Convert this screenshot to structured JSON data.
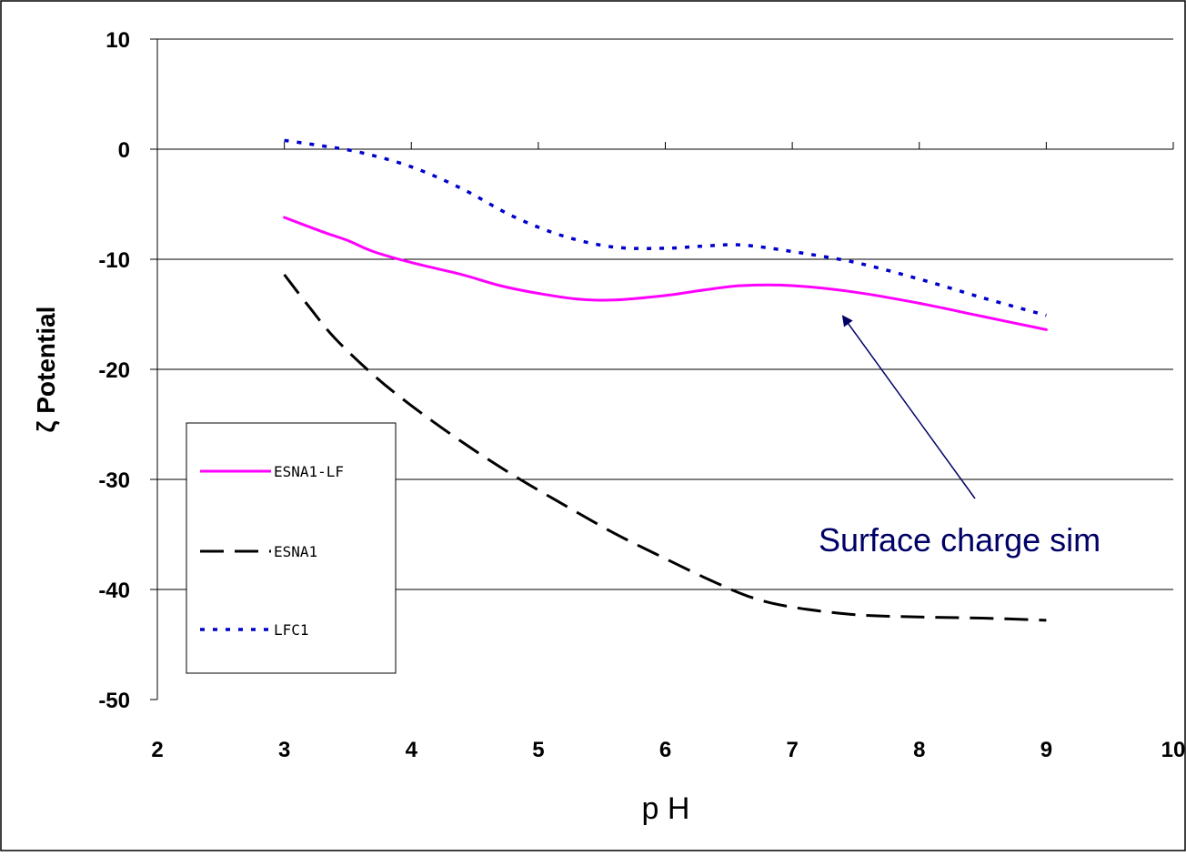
{
  "chart_data": {
    "type": "line",
    "xlabel": "p H",
    "ylabel": "ζ Potential",
    "xlim": [
      2,
      10
    ],
    "ylim": [
      -50,
      10
    ],
    "x_ticks": [
      "2",
      "3",
      "4",
      "5",
      "6",
      "7",
      "8",
      "9",
      "10"
    ],
    "y_ticks": [
      "10",
      "0",
      "-10",
      "-20",
      "-30",
      "-40",
      "-50"
    ],
    "grid": "horizontal",
    "legend_position": "left",
    "series": [
      {
        "name": "ESNA1-LF",
        "color": "#ff00ff",
        "style": "solid",
        "x": [
          3,
          3.3,
          3.5,
          3.7,
          4,
          4.4,
          4.7,
          5,
          5.3,
          5.6,
          6,
          6.3,
          6.6,
          7,
          7.5,
          8,
          8.5,
          9
        ],
        "y": [
          -6.2,
          -7.5,
          -8.3,
          -9.3,
          -10.3,
          -11.4,
          -12.4,
          -13.1,
          -13.6,
          -13.7,
          -13.3,
          -12.8,
          -12.4,
          -12.4,
          -13,
          -14,
          -15.2,
          -16.4
        ]
      },
      {
        "name": "ESNA1",
        "color": "#000000",
        "style": "dashed",
        "x": [
          3,
          3.2,
          3.4,
          3.7,
          4,
          4.4,
          4.8,
          5.2,
          5.6,
          6,
          6.4,
          6.7,
          7,
          7.5,
          8,
          8.5,
          9
        ],
        "y": [
          -11.4,
          -14.4,
          -17.2,
          -20.5,
          -23.3,
          -26.6,
          -29.6,
          -32.3,
          -34.9,
          -37.2,
          -39.4,
          -40.8,
          -41.6,
          -42.3,
          -42.5,
          -42.6,
          -42.8
        ]
      },
      {
        "name": "LFC1",
        "color": "#0000cc",
        "style": "dotted",
        "x": [
          3,
          3.3,
          3.6,
          4,
          4.4,
          4.8,
          5.2,
          5.6,
          6,
          6.3,
          6.6,
          7,
          7.5,
          8,
          8.5,
          9
        ],
        "y": [
          0.8,
          0.3,
          -0.3,
          -1.6,
          -3.6,
          -6.1,
          -7.9,
          -8.9,
          -9,
          -8.8,
          -8.7,
          -9.3,
          -10.3,
          -11.8,
          -13.5,
          -15.1
        ]
      }
    ],
    "annotation": {
      "text": "Surface charge sim",
      "color": "#000066",
      "arrow_to": {
        "x": 7.4,
        "y": -15.2
      }
    }
  }
}
